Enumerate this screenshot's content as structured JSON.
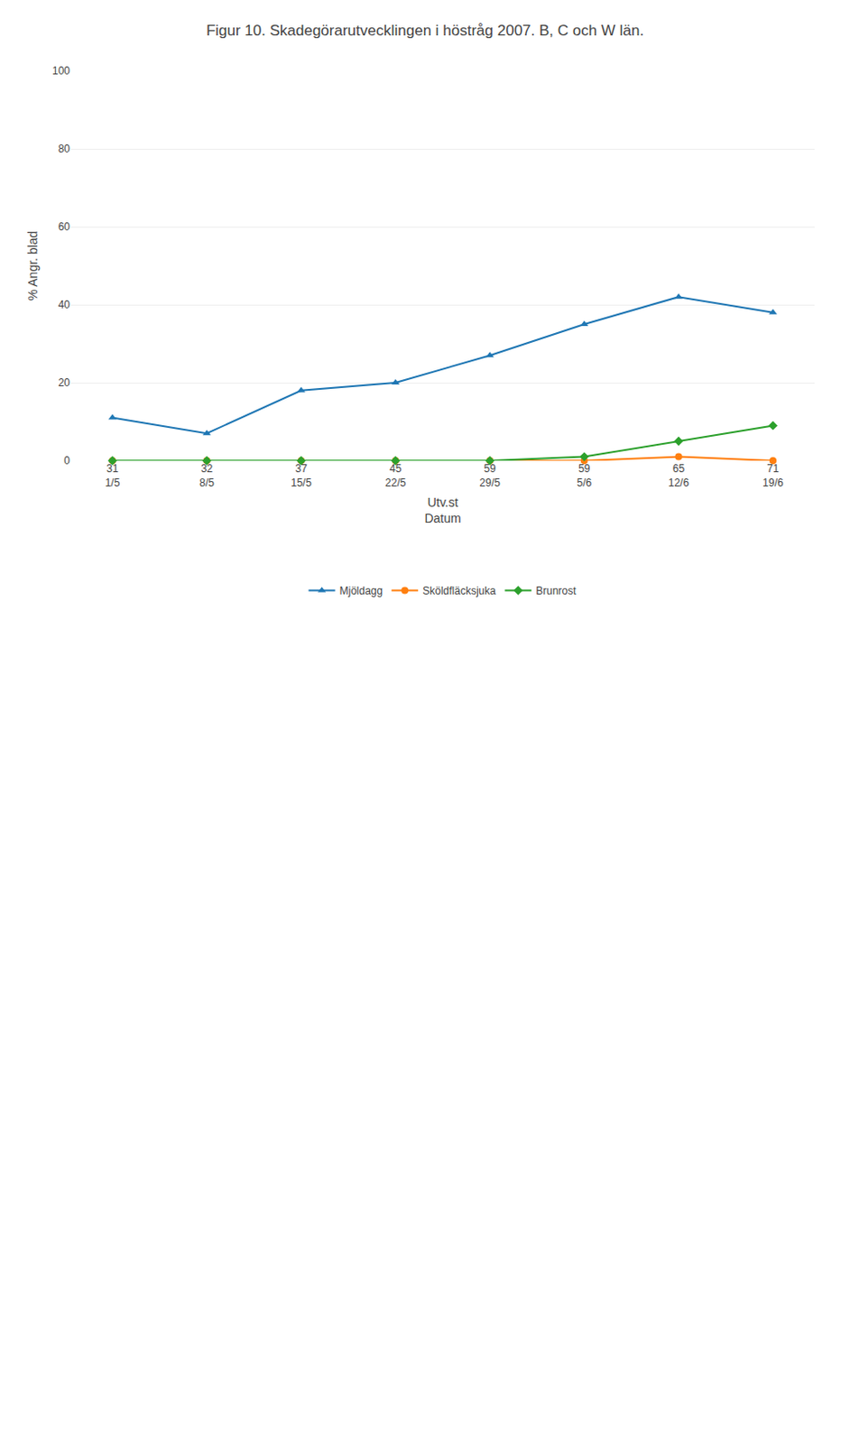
{
  "chart_data": {
    "type": "line",
    "title": "Figur 10. Skadegörarutvecklingen i höstråg 2007. B, C och W län.",
    "ylabel": "% Angr. blad",
    "xlabel": "Utv.st\nDatum",
    "categories": [
      "31\n1/5",
      "32\n8/5",
      "37\n15/5",
      "45\n22/5",
      "59\n29/5",
      "59\n5/6",
      "65\n12/6",
      "71\n19/6"
    ],
    "series": [
      {
        "name": "Mjöldagg",
        "marker": "triangle-up",
        "values": [
          11,
          7,
          18,
          20,
          27,
          35,
          42,
          38
        ]
      },
      {
        "name": "Sköldfläcksjuka",
        "marker": "circle",
        "values": [
          0,
          0,
          0,
          0,
          0,
          0,
          1,
          0
        ]
      },
      {
        "name": "Brunrost",
        "marker": "diamond",
        "values": [
          0,
          0,
          0,
          0,
          0,
          1,
          5,
          9
        ]
      }
    ],
    "ylim": [
      0,
      100
    ],
    "yticks": [
      0,
      20,
      40,
      60,
      80,
      100
    ],
    "grid": true,
    "legend": "bottom"
  }
}
